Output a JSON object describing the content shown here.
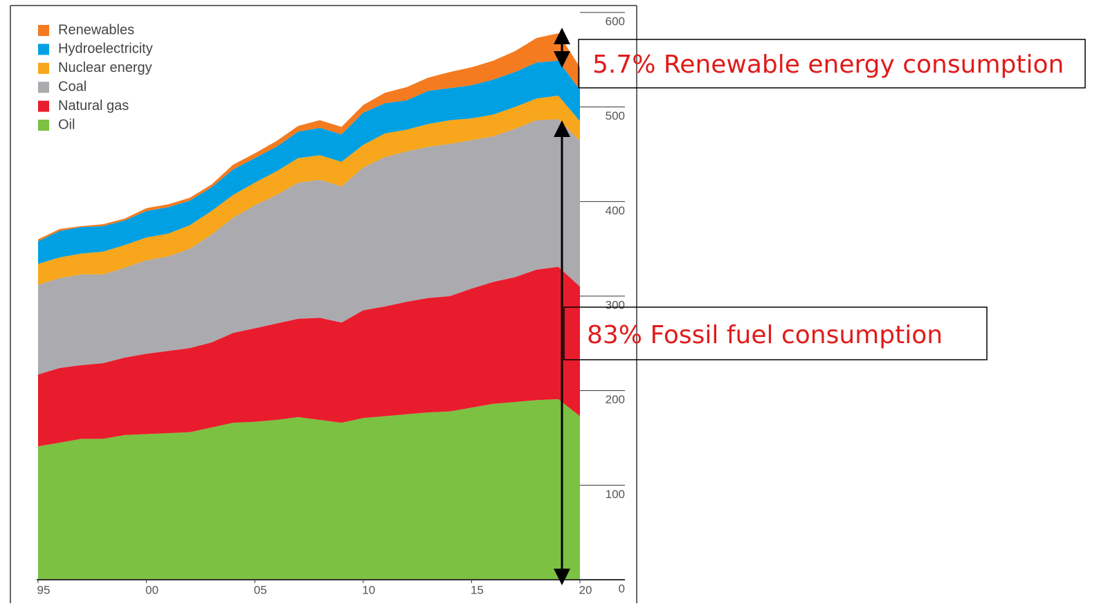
{
  "chart_data": {
    "type": "stacked_area",
    "x": [
      1995,
      1996,
      1997,
      1998,
      1999,
      2000,
      2001,
      2002,
      2003,
      2004,
      2005,
      2006,
      2007,
      2008,
      2009,
      2010,
      2011,
      2012,
      2013,
      2014,
      2015,
      2016,
      2017,
      2018,
      2019,
      2020
    ],
    "xlim": [
      1995,
      2020
    ],
    "xticks": [
      {
        "value": 1995,
        "label": "95"
      },
      {
        "value": 2000,
        "label": "00"
      },
      {
        "value": 2005,
        "label": "05"
      },
      {
        "value": 2010,
        "label": "10"
      },
      {
        "value": 2015,
        "label": "15"
      },
      {
        "value": 2020,
        "label": "20"
      }
    ],
    "ylim": [
      0,
      600
    ],
    "yticks": [
      0,
      100,
      200,
      300,
      400,
      500,
      600
    ],
    "series": [
      {
        "name": "Oil",
        "color": "#7cc142",
        "values": [
          141,
          145,
          149,
          149,
          153,
          154,
          155,
          156,
          161,
          166,
          167,
          169,
          172,
          169,
          166,
          171,
          173,
          175,
          177,
          178,
          182,
          186,
          188,
          190,
          191,
          173
        ]
      },
      {
        "name": "Natural gas",
        "color": "#e91c2d",
        "values": [
          76,
          79,
          78,
          80,
          82,
          85,
          87,
          89,
          90,
          95,
          99,
          102,
          104,
          108,
          106,
          114,
          116,
          119,
          121,
          122,
          126,
          129,
          132,
          138,
          140,
          137
        ]
      },
      {
        "name": "Coal",
        "color": "#abaaae",
        "values": [
          95,
          95,
          96,
          94,
          95,
          99,
          100,
          105,
          114,
          122,
          130,
          136,
          144,
          146,
          144,
          151,
          158,
          159,
          160,
          161,
          157,
          154,
          157,
          158,
          156,
          154
        ]
      },
      {
        "name": "Nuclear energy",
        "color": "#f8a61b",
        "values": [
          22,
          22,
          22,
          24,
          24,
          24,
          24,
          25,
          25,
          24,
          24,
          25,
          26,
          26,
          26,
          24,
          25,
          23,
          24,
          25,
          23,
          23,
          23,
          23,
          25,
          21
        ]
      },
      {
        "name": "Hydroelectricity",
        "color": "#00a0e3",
        "values": [
          24,
          28,
          28,
          27,
          26,
          28,
          28,
          26,
          25,
          27,
          26,
          26,
          28,
          29,
          29,
          34,
          32,
          31,
          35,
          34,
          35,
          37,
          37,
          38,
          37,
          33
        ]
      },
      {
        "name": "Renewables",
        "color": "#f47b20",
        "values": [
          2,
          2,
          1,
          2,
          2,
          3,
          3,
          3,
          3,
          5,
          5,
          6,
          6,
          8,
          8,
          8,
          11,
          14,
          14,
          17,
          19,
          20,
          22,
          26,
          29,
          24
        ]
      }
    ],
    "annotations": [
      "5.7% Renewable energy consumption",
      "83% Fossil fuel consumption"
    ]
  }
}
